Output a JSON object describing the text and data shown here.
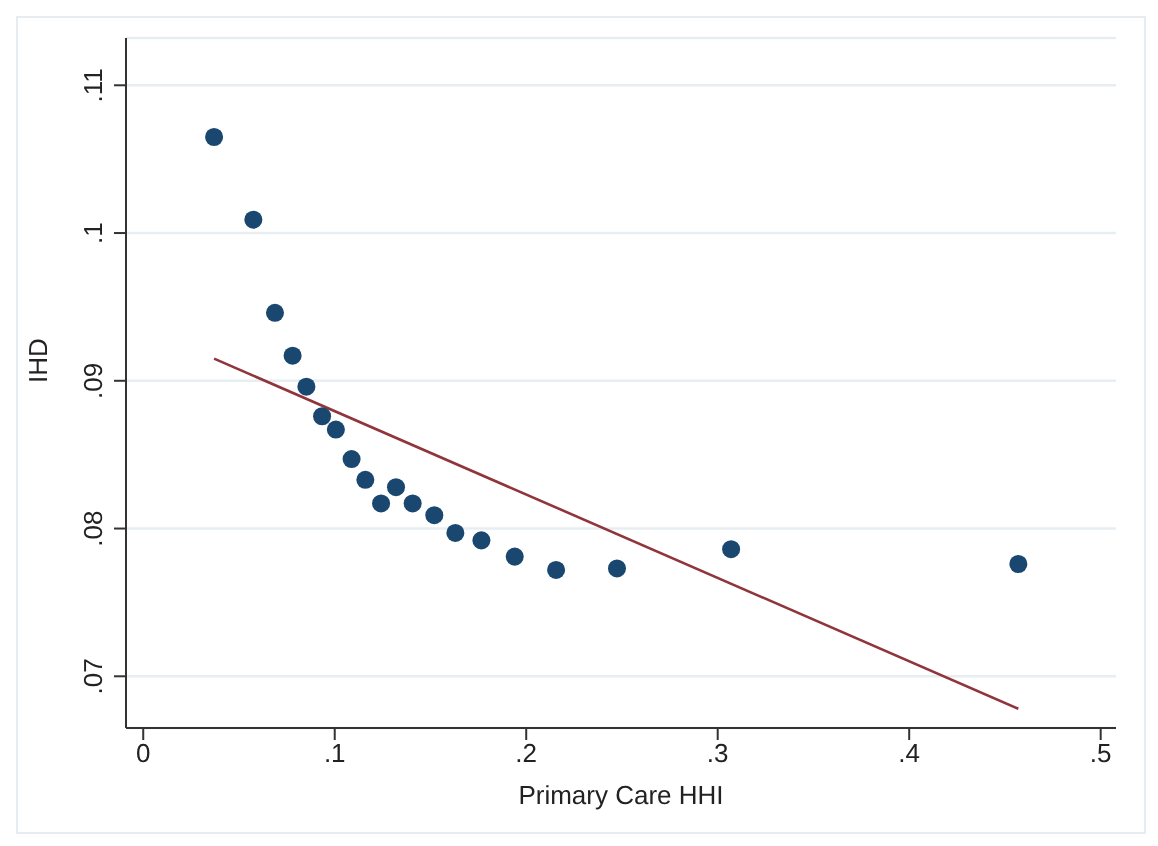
{
  "chart_data": {
    "type": "scatter",
    "xlabel": "Primary Care HHI",
    "ylabel": "IHD",
    "xlim": [
      -0.009,
      0.508
    ],
    "ylim": [
      0.0665,
      0.1132
    ],
    "xticks": [
      {
        "value": 0,
        "label": "0"
      },
      {
        "value": 0.1,
        "label": ".1"
      },
      {
        "value": 0.2,
        "label": ".2"
      },
      {
        "value": 0.3,
        "label": ".3"
      },
      {
        "value": 0.4,
        "label": ".4"
      },
      {
        "value": 0.5,
        "label": ".5"
      }
    ],
    "yticks": [
      {
        "value": 0.07,
        "label": ".07"
      },
      {
        "value": 0.08,
        "label": ".08"
      },
      {
        "value": 0.09,
        "label": ".09"
      },
      {
        "value": 0.1,
        "label": ".1"
      },
      {
        "value": 0.11,
        "label": ".11"
      }
    ],
    "grid": "y",
    "legend": false,
    "series": [
      {
        "marker": "circle",
        "color": "#1a476f",
        "x": [
          0.037,
          0.0575,
          0.0688,
          0.078,
          0.0852,
          0.0934,
          0.1006,
          0.1088,
          0.116,
          0.1242,
          0.132,
          0.1407,
          0.152,
          0.163,
          0.1766,
          0.194,
          0.2156,
          0.2474,
          0.307,
          0.457
        ],
        "values": [
          0.1065,
          0.1009,
          0.0946,
          0.0917,
          0.0896,
          0.0876,
          0.0867,
          0.0847,
          0.0833,
          0.0817,
          0.0828,
          0.0817,
          0.0809,
          0.0797,
          0.0792,
          0.0781,
          0.0772,
          0.0773,
          0.0786,
          0.0776
        ]
      },
      {
        "type": "line",
        "color": "#90353b",
        "x": [
          0.037,
          0.457
        ],
        "values": [
          0.0915,
          0.0678
        ]
      }
    ]
  }
}
